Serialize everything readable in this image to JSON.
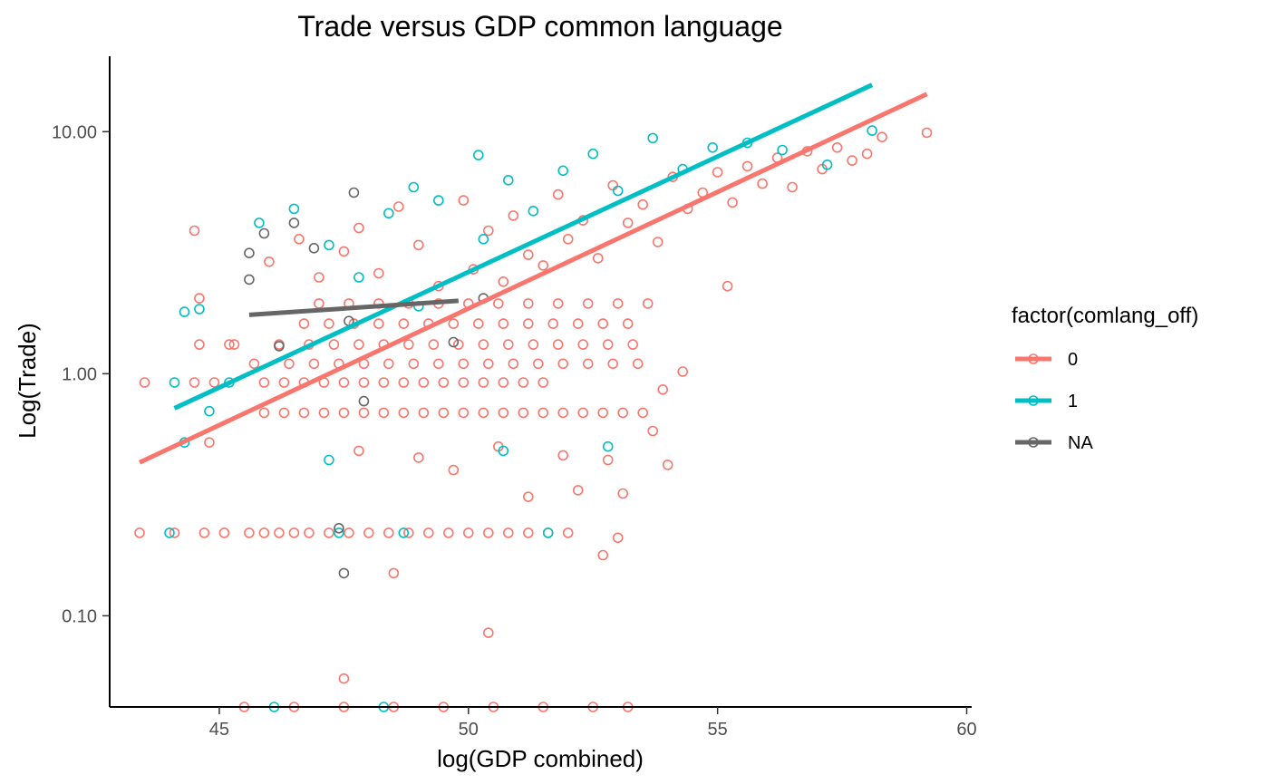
{
  "chart_data": {
    "type": "scatter",
    "title": "Trade versus GDP common language",
    "xlabel": "log(GDP combined)",
    "ylabel": "Log(Trade)",
    "x_scale": "linear",
    "y_scale": "log10",
    "xlim": [
      42.8,
      60.1
    ],
    "ylim": [
      0.042,
      20.5
    ],
    "x_ticks": [
      45,
      50,
      55,
      60
    ],
    "x_tick_labels": [
      "45",
      "50",
      "55",
      "60"
    ],
    "y_ticks": [
      0.1,
      1,
      10
    ],
    "y_tick_labels": [
      "0.10",
      "1.00",
      "10.00"
    ],
    "grid": false,
    "legend": {
      "title": "factor(comlang_off)",
      "position": "right"
    },
    "colors": {
      "0": "#f8766d",
      "1": "#00bfc4",
      "NA": "#666666"
    },
    "series": [
      {
        "name": "0",
        "color": "#f8766d",
        "points": [
          [
            43.4,
            0.22
          ],
          [
            44.1,
            0.22
          ],
          [
            44.7,
            0.22
          ],
          [
            45.1,
            0.22
          ],
          [
            45.6,
            0.22
          ],
          [
            45.9,
            0.22
          ],
          [
            46.2,
            0.22
          ],
          [
            46.5,
            0.22
          ],
          [
            46.8,
            0.22
          ],
          [
            47.2,
            0.22
          ],
          [
            47.6,
            0.22
          ],
          [
            48.0,
            0.22
          ],
          [
            48.4,
            0.22
          ],
          [
            48.8,
            0.22
          ],
          [
            49.2,
            0.22
          ],
          [
            49.6,
            0.22
          ],
          [
            50.0,
            0.22
          ],
          [
            50.4,
            0.22
          ],
          [
            50.8,
            0.22
          ],
          [
            51.2,
            0.22
          ],
          [
            51.6,
            0.22
          ],
          [
            52.0,
            0.22
          ],
          [
            43.5,
            0.92
          ],
          [
            44.5,
            0.92
          ],
          [
            44.9,
            0.92
          ],
          [
            45.9,
            0.92
          ],
          [
            46.3,
            0.92
          ],
          [
            46.7,
            0.92
          ],
          [
            47.1,
            0.92
          ],
          [
            47.5,
            0.92
          ],
          [
            47.9,
            0.92
          ],
          [
            48.3,
            0.92
          ],
          [
            48.7,
            0.92
          ],
          [
            49.1,
            0.92
          ],
          [
            49.5,
            0.92
          ],
          [
            49.9,
            0.92
          ],
          [
            50.3,
            0.92
          ],
          [
            50.7,
            0.92
          ],
          [
            51.1,
            0.92
          ],
          [
            51.5,
            0.92
          ],
          [
            45.9,
            0.69
          ],
          [
            46.3,
            0.69
          ],
          [
            46.7,
            0.69
          ],
          [
            47.1,
            0.69
          ],
          [
            47.5,
            0.69
          ],
          [
            47.9,
            0.69
          ],
          [
            48.3,
            0.69
          ],
          [
            48.7,
            0.69
          ],
          [
            49.1,
            0.69
          ],
          [
            49.5,
            0.69
          ],
          [
            49.9,
            0.69
          ],
          [
            50.3,
            0.69
          ],
          [
            50.7,
            0.69
          ],
          [
            51.1,
            0.69
          ],
          [
            51.5,
            0.69
          ],
          [
            51.9,
            0.69
          ],
          [
            52.3,
            0.69
          ],
          [
            52.7,
            0.69
          ],
          [
            53.1,
            0.69
          ],
          [
            53.5,
            0.69
          ],
          [
            45.7,
            1.1
          ],
          [
            46.4,
            1.1
          ],
          [
            46.9,
            1.1
          ],
          [
            47.4,
            1.1
          ],
          [
            47.9,
            1.1
          ],
          [
            48.4,
            1.1
          ],
          [
            48.9,
            1.1
          ],
          [
            49.4,
            1.1
          ],
          [
            49.9,
            1.1
          ],
          [
            50.4,
            1.1
          ],
          [
            50.9,
            1.1
          ],
          [
            51.4,
            1.1
          ],
          [
            51.9,
            1.1
          ],
          [
            52.4,
            1.1
          ],
          [
            52.9,
            1.1
          ],
          [
            53.4,
            1.1
          ],
          [
            44.6,
            1.32
          ],
          [
            45.3,
            1.32
          ],
          [
            46.2,
            1.32
          ],
          [
            46.8,
            1.32
          ],
          [
            47.3,
            1.32
          ],
          [
            47.8,
            1.32
          ],
          [
            48.3,
            1.32
          ],
          [
            48.8,
            1.32
          ],
          [
            49.3,
            1.32
          ],
          [
            49.8,
            1.32
          ],
          [
            50.3,
            1.32
          ],
          [
            50.8,
            1.32
          ],
          [
            51.3,
            1.32
          ],
          [
            51.8,
            1.32
          ],
          [
            52.3,
            1.32
          ],
          [
            52.8,
            1.32
          ],
          [
            53.3,
            1.32
          ],
          [
            46.7,
            1.61
          ],
          [
            47.2,
            1.61
          ],
          [
            47.7,
            1.61
          ],
          [
            48.2,
            1.61
          ],
          [
            48.7,
            1.61
          ],
          [
            49.2,
            1.61
          ],
          [
            49.7,
            1.61
          ],
          [
            50.2,
            1.61
          ],
          [
            50.7,
            1.61
          ],
          [
            51.2,
            1.61
          ],
          [
            51.7,
            1.61
          ],
          [
            52.2,
            1.61
          ],
          [
            52.7,
            1.61
          ],
          [
            53.2,
            1.61
          ],
          [
            47.0,
            1.95
          ],
          [
            47.6,
            1.95
          ],
          [
            48.2,
            1.95
          ],
          [
            48.8,
            1.95
          ],
          [
            49.4,
            1.95
          ],
          [
            50.0,
            1.95
          ],
          [
            50.6,
            1.95
          ],
          [
            51.2,
            1.95
          ],
          [
            51.8,
            1.95
          ],
          [
            52.4,
            1.95
          ],
          [
            53.0,
            1.95
          ],
          [
            53.6,
            1.95
          ],
          [
            44.5,
            3.9
          ],
          [
            44.6,
            2.05
          ],
          [
            44.8,
            0.52
          ],
          [
            45.2,
            1.32
          ],
          [
            46.0,
            2.9
          ],
          [
            46.6,
            3.6
          ],
          [
            47.0,
            2.5
          ],
          [
            47.5,
            3.2
          ],
          [
            47.8,
            4.0
          ],
          [
            48.2,
            2.6
          ],
          [
            48.6,
            4.9
          ],
          [
            49.0,
            3.4
          ],
          [
            49.4,
            2.3
          ],
          [
            49.9,
            5.2
          ],
          [
            50.1,
            2.7
          ],
          [
            50.4,
            3.9
          ],
          [
            50.7,
            2.4
          ],
          [
            50.9,
            4.5
          ],
          [
            51.2,
            3.1
          ],
          [
            51.5,
            2.8
          ],
          [
            51.8,
            5.5
          ],
          [
            52.0,
            3.6
          ],
          [
            52.3,
            4.3
          ],
          [
            52.6,
            3.0
          ],
          [
            52.9,
            6.0
          ],
          [
            53.2,
            4.2
          ],
          [
            53.5,
            5.0
          ],
          [
            53.8,
            3.5
          ],
          [
            54.1,
            6.5
          ],
          [
            54.4,
            4.8
          ],
          [
            54.7,
            5.6
          ],
          [
            55.0,
            6.8
          ],
          [
            55.3,
            5.1
          ],
          [
            55.6,
            7.2
          ],
          [
            55.9,
            6.1
          ],
          [
            56.2,
            7.8
          ],
          [
            56.5,
            5.9
          ],
          [
            56.8,
            8.3
          ],
          [
            57.1,
            7.0
          ],
          [
            57.4,
            8.6
          ],
          [
            57.7,
            7.6
          ],
          [
            58.0,
            8.1
          ],
          [
            58.3,
            9.5
          ],
          [
            59.2,
            9.9
          ],
          [
            47.8,
            0.48
          ],
          [
            49.0,
            0.45
          ],
          [
            49.7,
            0.4
          ],
          [
            50.6,
            0.5
          ],
          [
            51.2,
            0.31
          ],
          [
            51.9,
            0.46
          ],
          [
            52.2,
            0.33
          ],
          [
            52.8,
            0.44
          ],
          [
            53.1,
            0.32
          ],
          [
            53.7,
            0.58
          ],
          [
            54.0,
            0.42
          ],
          [
            54.3,
            1.02
          ],
          [
            55.2,
            2.3
          ],
          [
            53.9,
            0.86
          ],
          [
            50.4,
            0.085
          ],
          [
            48.5,
            0.15
          ],
          [
            47.5,
            0.055
          ],
          [
            52.7,
            0.178
          ],
          [
            53.0,
            0.21
          ],
          [
            45.5,
            0.042
          ],
          [
            46.5,
            0.042
          ],
          [
            47.5,
            0.042
          ],
          [
            48.5,
            0.042
          ],
          [
            49.5,
            0.042
          ],
          [
            50.5,
            0.042
          ],
          [
            51.5,
            0.042
          ],
          [
            52.5,
            0.042
          ],
          [
            53.2,
            0.042
          ]
        ],
        "fit": {
          "x": [
            43.4,
            59.2
          ],
          "y": [
            0.43,
            14.3
          ]
        }
      },
      {
        "name": "1",
        "color": "#00bfc4",
        "points": [
          [
            44.1,
            0.92
          ],
          [
            44.3,
            1.8
          ],
          [
            44.6,
            1.85
          ],
          [
            44.8,
            0.7
          ],
          [
            45.2,
            0.92
          ],
          [
            45.8,
            4.2
          ],
          [
            46.5,
            4.8
          ],
          [
            47.2,
            3.4
          ],
          [
            47.8,
            2.5
          ],
          [
            48.4,
            4.6
          ],
          [
            48.9,
            5.9
          ],
          [
            49.4,
            5.2
          ],
          [
            50.2,
            8.0
          ],
          [
            50.8,
            6.3
          ],
          [
            51.3,
            4.7
          ],
          [
            51.9,
            6.9
          ],
          [
            52.5,
            8.1
          ],
          [
            53.0,
            5.7
          ],
          [
            53.7,
            9.4
          ],
          [
            54.3,
            7.0
          ],
          [
            54.9,
            8.6
          ],
          [
            55.6,
            9.0
          ],
          [
            56.3,
            8.4
          ],
          [
            57.2,
            7.3
          ],
          [
            58.1,
            10.1
          ],
          [
            44.3,
            0.52
          ],
          [
            47.2,
            0.44
          ],
          [
            50.7,
            0.48
          ],
          [
            52.8,
            0.5
          ],
          [
            44.0,
            0.22
          ],
          [
            47.4,
            0.22
          ],
          [
            48.7,
            0.22
          ],
          [
            51.6,
            0.22
          ],
          [
            46.1,
            0.042
          ],
          [
            48.3,
            0.042
          ],
          [
            49.0,
            1.9
          ],
          [
            50.3,
            3.6
          ]
        ],
        "fit": {
          "x": [
            44.1,
            58.1
          ],
          "y": [
            0.72,
            15.6
          ]
        }
      },
      {
        "name": "NA",
        "color": "#666666",
        "points": [
          [
            45.6,
            3.15
          ],
          [
            45.6,
            2.45
          ],
          [
            45.9,
            3.8
          ],
          [
            46.2,
            1.3
          ],
          [
            46.5,
            4.2
          ],
          [
            46.9,
            3.3
          ],
          [
            47.6,
            1.65
          ],
          [
            47.7,
            5.6
          ],
          [
            47.9,
            0.77
          ],
          [
            47.5,
            0.15
          ],
          [
            47.4,
            0.23
          ],
          [
            49.7,
            1.35
          ],
          [
            50.3,
            2.05
          ]
        ],
        "fit": {
          "x": [
            45.6,
            49.8
          ],
          "y": [
            1.75,
            2.0
          ]
        }
      }
    ]
  }
}
